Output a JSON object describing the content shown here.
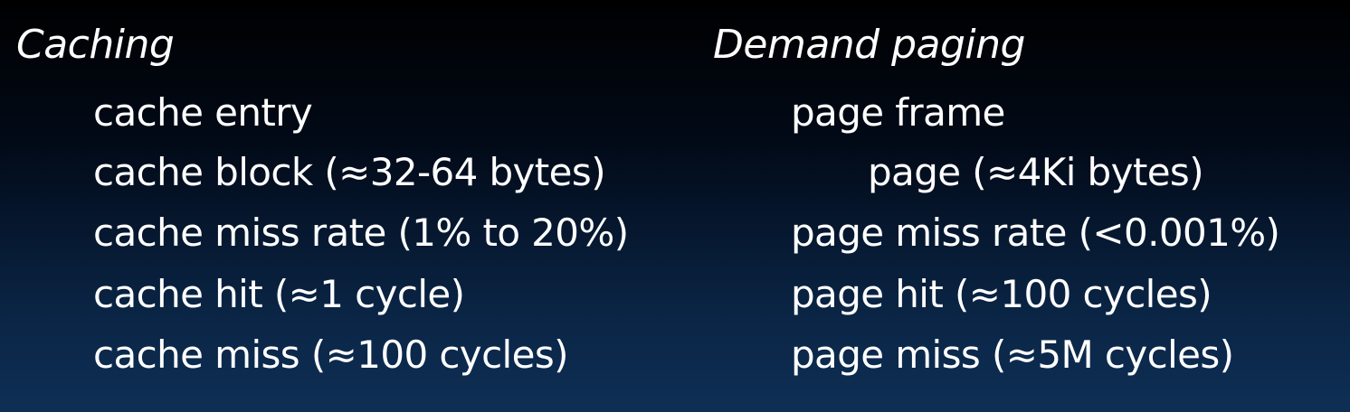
{
  "caching": {
    "heading": "Caching",
    "items": [
      "cache entry",
      "cache block (≈32-64 bytes)",
      "cache miss rate (1% to 20%)",
      "cache hit (≈1 cycle)",
      "cache miss (≈100 cycles)"
    ]
  },
  "demand_paging": {
    "heading": "Demand paging",
    "items": [
      "page frame",
      "page (≈4Ki bytes)",
      "page miss rate (<0.001%)",
      "page hit (≈100 cycles)",
      "page miss (≈5M cycles)"
    ]
  },
  "colors": {
    "text": "#ffffff",
    "background_top": "#000000",
    "background_bottom": "#0e2f55"
  }
}
